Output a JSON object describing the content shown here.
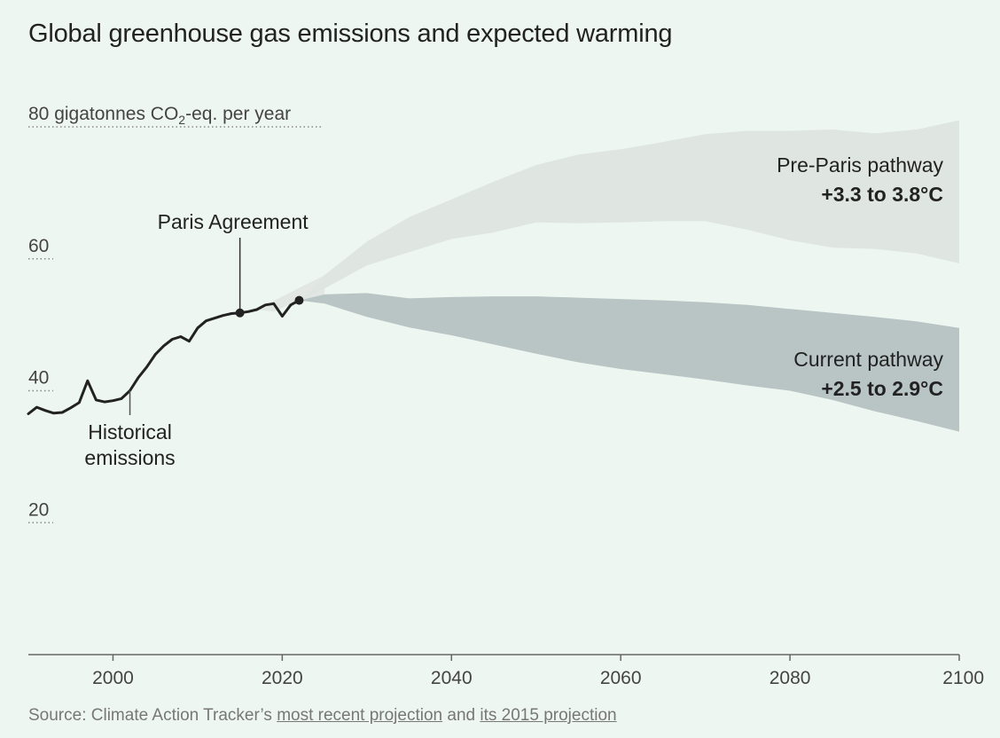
{
  "title": "Global greenhouse gas emissions and expected warming",
  "source": {
    "prefix": "Source: Climate Action Tracker’s",
    "link1": "most recent projection",
    "middle": "and",
    "link2": "its 2015 projection"
  },
  "colors": {
    "background": "#eef6f1",
    "pre_paris_band": "#dfe5e1",
    "current_band": "#b8c5c4",
    "connector_band": "#e2e7e3",
    "historical_line": "#222222",
    "gridline": "#888888"
  },
  "chart_data": {
    "type": "area",
    "title": "Global greenhouse gas emissions and expected warming",
    "ylabel": "80 gigatonnes CO2-eq. per year",
    "xlim": [
      1990,
      2100
    ],
    "ylim": [
      0,
      80
    ],
    "x_ticks": [
      2000,
      2020,
      2040,
      2060,
      2080,
      2100
    ],
    "y_ticks": [
      {
        "value": 80,
        "label": "80 gigatonnes CO",
        "sub": "2",
        "suffix": "-eq. per year"
      },
      {
        "value": 60,
        "label": "60"
      },
      {
        "value": 40,
        "label": "40"
      },
      {
        "value": 20,
        "label": "20"
      }
    ],
    "historical": {
      "name": "Historical emissions",
      "x": [
        1990,
        1991,
        1992,
        1993,
        1994,
        1995,
        1996,
        1997,
        1998,
        1999,
        2000,
        2001,
        2002,
        2003,
        2004,
        2005,
        2006,
        2007,
        2008,
        2009,
        2010,
        2011,
        2012,
        2013,
        2014,
        2015,
        2016,
        2017,
        2018,
        2019,
        2020,
        2021,
        2022
      ],
      "y": [
        36.5,
        37.5,
        37.0,
        36.6,
        36.7,
        37.4,
        38.2,
        41.5,
        38.6,
        38.3,
        38.5,
        38.8,
        40.0,
        42.0,
        43.6,
        45.5,
        46.8,
        47.8,
        48.2,
        47.5,
        49.5,
        50.6,
        51.0,
        51.4,
        51.7,
        51.8,
        52.0,
        52.3,
        53.0,
        53.2,
        51.3,
        53.0,
        53.7
      ]
    },
    "pre_paris": {
      "name": "Pre-Paris pathway",
      "warming": "+3.3 to 3.8°C",
      "x": [
        2022,
        2025,
        2030,
        2035,
        2040,
        2045,
        2050,
        2055,
        2060,
        2065,
        2070,
        2075,
        2080,
        2085,
        2090,
        2095,
        2100
      ],
      "upper": [
        53.6,
        57.5,
        62.6,
        66.3,
        69.0,
        71.7,
        74.2,
        75.8,
        76.6,
        77.7,
        78.9,
        79.4,
        79.4,
        79.6,
        79.0,
        79.6,
        81.0
      ],
      "lower": [
        53.6,
        55.5,
        59.0,
        61.0,
        63.0,
        64.0,
        65.5,
        65.4,
        65.5,
        65.7,
        65.7,
        64.4,
        62.8,
        61.7,
        61.5,
        60.8,
        59.3
      ]
    },
    "current": {
      "name": "Current pathway",
      "warming": "+2.5 to 2.9°C",
      "x": [
        2022,
        2025,
        2030,
        2035,
        2040,
        2045,
        2050,
        2055,
        2060,
        2065,
        2070,
        2075,
        2080,
        2085,
        2090,
        2095,
        2100
      ],
      "upper": [
        53.7,
        54.6,
        54.8,
        54.0,
        54.2,
        54.3,
        54.3,
        54.1,
        53.9,
        53.7,
        53.4,
        53.0,
        52.4,
        51.8,
        51.2,
        50.5,
        49.5
      ],
      "lower": [
        53.7,
        53.2,
        51.2,
        49.6,
        48.4,
        47.0,
        45.6,
        44.3,
        43.3,
        42.5,
        41.7,
        40.8,
        40.0,
        38.6,
        36.9,
        35.4,
        33.8
      ]
    },
    "annotations": [
      {
        "label": "Paris Agreement",
        "x": 2015,
        "y": 51.8
      },
      {
        "label_lines": [
          "Historical",
          "emissions"
        ],
        "x": 2002,
        "y": 40.0
      }
    ]
  }
}
